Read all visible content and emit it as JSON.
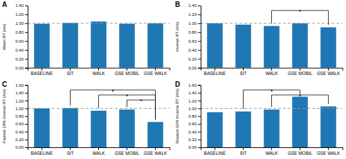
{
  "chart_data": [
    {
      "type": "bar",
      "title": "A",
      "y_label": "Mean RT (ms)",
      "categories": [
        "BASELINE",
        "SIT",
        "WALK",
        "GSE MOBIL",
        "GSE WALK"
      ],
      "values": [
        0.99,
        1.01,
        1.04,
        0.99,
        1.0
      ],
      "ylim": [
        0.0,
        1.4
      ],
      "yticks": [
        {
          "value": 0.0,
          "label": "0.00"
        },
        {
          "value": 0.2,
          "label": "0.20"
        },
        {
          "value": 0.4,
          "label": "0.40"
        },
        {
          "value": 0.6,
          "label": "0.60"
        },
        {
          "value": 0.8,
          "label": "0.80"
        },
        {
          "value": 1.0,
          "label": "1.00"
        },
        {
          "value": 1.2,
          "label": "1.20"
        },
        {
          "value": 1.4,
          "label": "1.40"
        }
      ],
      "reference_line": 1.0
    },
    {
      "type": "bar",
      "title": "B",
      "y_label": "Inverse RT (A/s)",
      "categories": [
        "BASELINE",
        "SIT",
        "WALK",
        "GSE MOBIL",
        "GSE WALK"
      ],
      "values": [
        1.0,
        0.97,
        0.94,
        1.0,
        0.91
      ],
      "ylim": [
        0.0,
        1.4
      ],
      "yticks": [
        {
          "value": 0.0,
          "label": "0.00"
        },
        {
          "value": 0.2,
          "label": "0.20"
        },
        {
          "value": 0.4,
          "label": "0.40"
        },
        {
          "value": 0.6,
          "label": "0.60"
        },
        {
          "value": 0.8,
          "label": "0.80"
        },
        {
          "value": 1.0,
          "label": "1.00"
        },
        {
          "value": 1.2,
          "label": "1.20"
        },
        {
          "value": 1.4,
          "label": "1.40"
        }
      ],
      "reference_line": 1.0,
      "significance": [
        {
          "from": "WALK",
          "to": "GSE WALK",
          "label": "*"
        }
      ]
    },
    {
      "type": "bar",
      "title": "C",
      "y_label": "Fastest 10% Inverse RT (A/s)",
      "categories": [
        "BASELINE",
        "SIT",
        "WALK",
        "GSE MOBIL",
        "GSE WALK"
      ],
      "values": [
        1.0,
        1.01,
        0.94,
        0.97,
        0.65
      ],
      "ylim": [
        0.0,
        1.6
      ],
      "yticks": [
        {
          "value": 0.0,
          "label": "0.00"
        },
        {
          "value": 0.2,
          "label": "0.20"
        },
        {
          "value": 0.4,
          "label": "0.40"
        },
        {
          "value": 0.6,
          "label": "0.60"
        },
        {
          "value": 0.8,
          "label": "0.80"
        },
        {
          "value": 1.0,
          "label": "1.00"
        },
        {
          "value": 1.2,
          "label": "1.20"
        },
        {
          "value": 1.4,
          "label": "1.40"
        },
        {
          "value": 1.6,
          "label": "1.60"
        }
      ],
      "reference_line": 1.0,
      "significance": [
        {
          "from": "SIT",
          "to": "GSE WALK",
          "label": "*"
        },
        {
          "from": "WALK",
          "to": "GSE WALK",
          "label": "*"
        },
        {
          "from": "GSE MOBIL",
          "to": "GSE WALK",
          "label": "*"
        }
      ]
    },
    {
      "type": "bar",
      "title": "D",
      "y_label": "Slowest 10% Inverse RT (A/s)",
      "categories": [
        "BASELINE",
        "SIT",
        "WALK",
        "GSE MOBIL",
        "GSE WALK"
      ],
      "values": [
        0.9,
        0.92,
        0.97,
        1.3,
        1.05
      ],
      "ylim": [
        0.0,
        1.6
      ],
      "yticks": [
        {
          "value": 0.0,
          "label": "0.00"
        },
        {
          "value": 0.2,
          "label": "0.20"
        },
        {
          "value": 0.4,
          "label": "0.40"
        },
        {
          "value": 0.6,
          "label": "0.60"
        },
        {
          "value": 0.8,
          "label": "0.80"
        },
        {
          "value": 1.0,
          "label": "1.00"
        },
        {
          "value": 1.2,
          "label": "1.20"
        },
        {
          "value": 1.4,
          "label": "1.40"
        },
        {
          "value": 1.6,
          "label": "1.60"
        }
      ],
      "reference_line": 1.0,
      "significance": [
        {
          "from": "SIT",
          "to": "GSE MOBIL",
          "label": "*"
        },
        {
          "from": "WALK",
          "to": "GSE WALK",
          "label": "*"
        }
      ]
    }
  ]
}
